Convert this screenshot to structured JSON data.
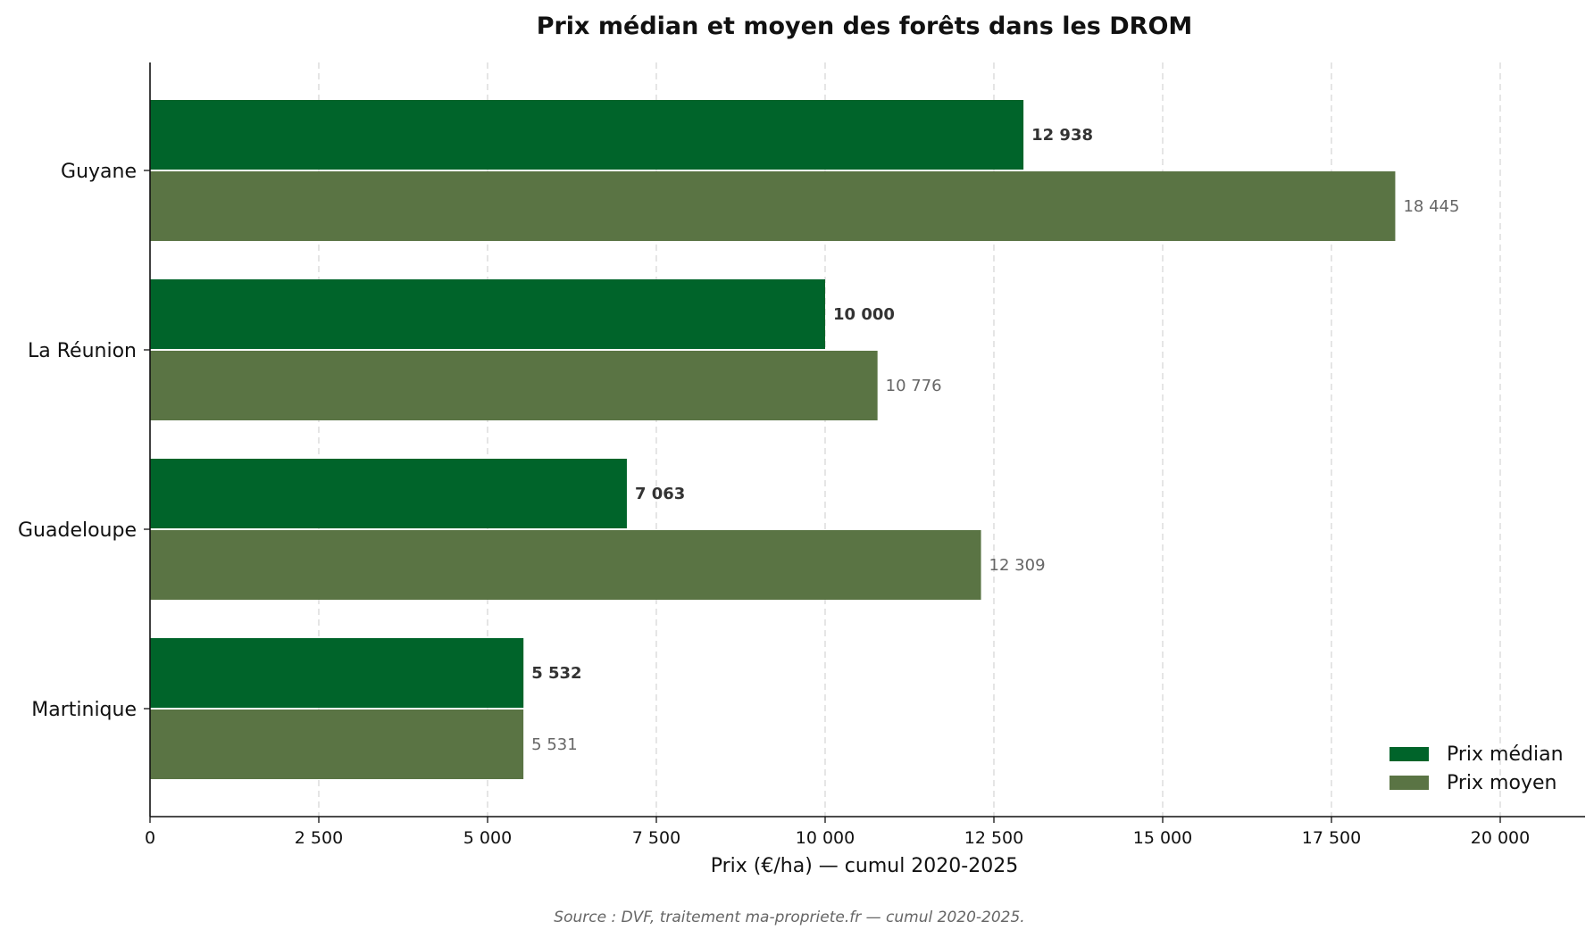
{
  "chart_data": {
    "type": "bar",
    "orientation": "horizontal",
    "title": "Prix médian et moyen des forêts dans les DROM",
    "xlabel": "Prix (€/ha) — cumul 2020-2025",
    "ylabel": "",
    "categories": [
      "Guyane",
      "La Réunion",
      "Guadeloupe",
      "Martinique"
    ],
    "series": [
      {
        "name": "Prix médian",
        "color": "#00642A",
        "values": [
          12938,
          10000,
          7063,
          5532
        ],
        "labels": [
          "12 938",
          "10 000",
          "7 063",
          "5 532"
        ]
      },
      {
        "name": "Prix moyen",
        "color": "#5A7444",
        "values": [
          18445,
          10776,
          12309,
          5531
        ],
        "labels": [
          "18 445",
          "10 776",
          "12 309",
          "5 531"
        ]
      }
    ],
    "xlim": [
      0,
      21250
    ],
    "xticks": [
      0,
      2500,
      5000,
      7500,
      10000,
      12500,
      15000,
      17500,
      20000
    ],
    "xtick_labels": [
      "0",
      "2 500",
      "5 000",
      "7 500",
      "10 000",
      "12 500",
      "15 000",
      "17 500",
      "20 000"
    ],
    "grid": "vertical dashed",
    "legend_position": "bottom-right",
    "source": "Source : DVF, traitement ma-propriete.fr — cumul 2020-2025."
  }
}
